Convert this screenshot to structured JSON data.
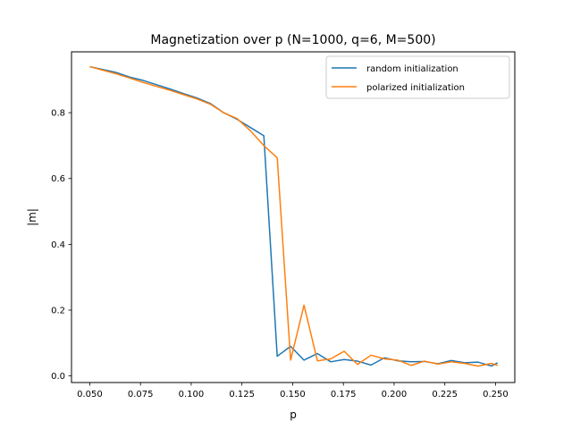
{
  "chart_data": {
    "type": "line",
    "title": "Magnetization over p (N=1000, q=6, M=500)",
    "xlabel": "p",
    "ylabel": "|m|",
    "xlim": [
      0.041,
      0.2595
    ],
    "ylim": [
      -0.02,
      0.985
    ],
    "xticks": [
      0.05,
      0.075,
      0.1,
      0.125,
      0.15,
      0.175,
      0.2,
      0.225,
      0.25
    ],
    "xtick_labels": [
      "0.050",
      "0.075",
      "0.100",
      "0.125",
      "0.150",
      "0.175",
      "0.200",
      "0.225",
      "0.250"
    ],
    "yticks": [
      0.0,
      0.2,
      0.4,
      0.6,
      0.8
    ],
    "ytick_labels": [
      "0.0",
      "0.2",
      "0.4",
      "0.6",
      "0.8"
    ],
    "grid": false,
    "legend_position": "top-right",
    "x": [
      0.05,
      0.0566,
      0.0632,
      0.0698,
      0.0764,
      0.083,
      0.0896,
      0.0962,
      0.1028,
      0.1094,
      0.116,
      0.1226,
      0.1292,
      0.1358,
      0.1424,
      0.149,
      0.1556,
      0.1622,
      0.1688,
      0.1754,
      0.182,
      0.1886,
      0.1952,
      0.2018,
      0.2084,
      0.215,
      0.2216,
      0.2282,
      0.2348,
      0.2414,
      0.248,
      0.251
    ],
    "series": [
      {
        "name": "random initialization",
        "color": "#1f77b4",
        "values": [
          0.94,
          0.931,
          0.922,
          0.908,
          0.898,
          0.885,
          0.872,
          0.858,
          0.845,
          0.828,
          0.8,
          0.78,
          0.755,
          0.73,
          0.06,
          0.09,
          0.048,
          0.068,
          0.043,
          0.05,
          0.045,
          0.033,
          0.055,
          0.046,
          0.043,
          0.044,
          0.037,
          0.047,
          0.04,
          0.042,
          0.03,
          0.04
        ]
      },
      {
        "name": "polarized initialization",
        "color": "#ff7f0e",
        "values": [
          0.94,
          0.929,
          0.918,
          0.905,
          0.892,
          0.88,
          0.868,
          0.855,
          0.842,
          0.826,
          0.8,
          0.782,
          0.745,
          0.7,
          0.663,
          0.048,
          0.215,
          0.046,
          0.052,
          0.075,
          0.035,
          0.063,
          0.052,
          0.048,
          0.032,
          0.045,
          0.036,
          0.043,
          0.038,
          0.03,
          0.038,
          0.032
        ]
      }
    ]
  }
}
